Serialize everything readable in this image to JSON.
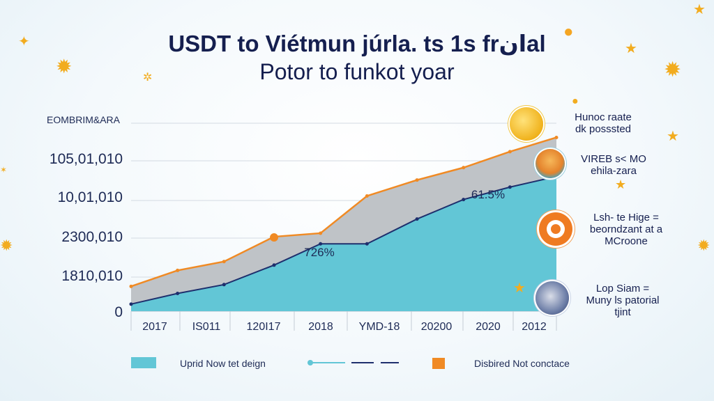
{
  "title_line1": "USDT to Viétmun júrla. ts 1s frانal",
  "title_line2": "Potor to funkot yoar",
  "chart_data": {
    "type": "area",
    "y_axis_label": "EOMBRIM&ARA",
    "y_tick_labels": [
      "0",
      "1810,010",
      "2300,010",
      "10,01,010",
      "105,01,010"
    ],
    "x_tick_labels": [
      "2017",
      "IS011",
      "120I17",
      "2018",
      "YMD-18",
      "20200",
      "2020",
      "2012"
    ],
    "series": [
      {
        "name": "Uprid Now tet deign",
        "color": "#62c6d6",
        "values": [
          0.4,
          1.0,
          1.5,
          2.6,
          3.8,
          3.8,
          5.2,
          6.3,
          7.0,
          7.6
        ]
      },
      {
        "name": "Disbired Not conctace",
        "color": "#f08a24",
        "values": [
          1.4,
          2.3,
          2.8,
          4.2,
          4.4,
          6.5,
          7.4,
          8.1,
          9.0,
          9.8
        ]
      }
    ],
    "x": [
      0,
      0.65,
      1.3,
      2.0,
      2.65,
      3.3,
      4.0,
      4.65,
      5.3,
      5.95
    ],
    "ylim": [
      0,
      10.8
    ],
    "data_labels": [
      "61.5%",
      "726%"
    ],
    "legend": [
      "Uprid Now tet deign",
      "Disbired Not conctace"
    ],
    "legend_placement": "bottom",
    "grid": true
  },
  "side_notes": [
    {
      "text": "Hunoc raate\ndk posssted",
      "icon": "gold-coin-icon"
    },
    {
      "text": "VIREB s< MO\nehila-zara",
      "icon": "person-avatar-icon"
    },
    {
      "text": "Lsh- te Hige =\nbeorndzant at a\nMCroone",
      "icon": "orange-coin-icon"
    },
    {
      "text": "Lop Siam =\nMuny ls patorial\ntjint",
      "icon": "globe-icon"
    }
  ],
  "colors": {
    "teal": "#62c6d6",
    "grey_band": "#bfc3c7",
    "orange": "#f08a24",
    "navy": "#1e2f6d",
    "star": "#f2ac1f"
  }
}
